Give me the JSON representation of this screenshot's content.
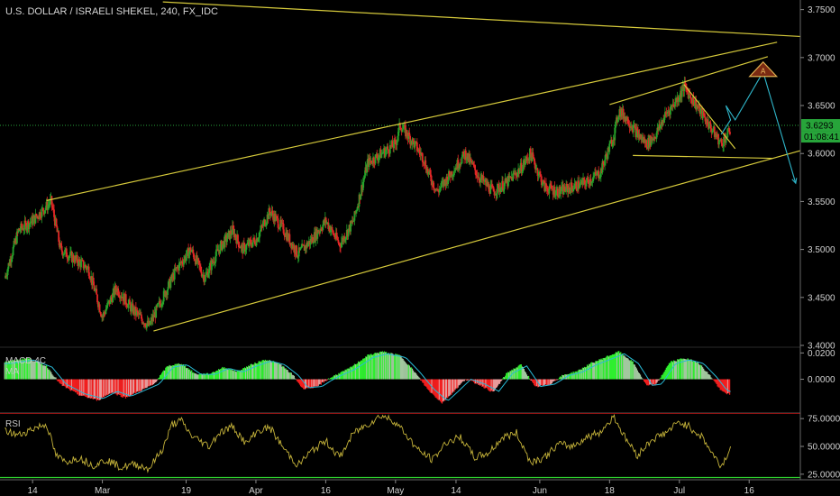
{
  "title": "U.S. DOLLAR / ISRAELI SHEKEL, 240, FX_IDC",
  "colors": {
    "background": "#000000",
    "up_candle": "#26a32a",
    "down_candle": "#e32727",
    "trendline": "#d5c93b",
    "price_line": "#27a43a",
    "macd_pos_strong": "#2fef2f",
    "macd_pos_weak": "#a3c79f",
    "macd_neg_strong": "#f21e1e",
    "macd_neg_weak": "#e89b9b",
    "macd_signal": "#28b9d6",
    "rsi_line": "#c5b33a",
    "rsi_upper": "#e81f1f",
    "rsi_lower": "#2fd02f",
    "projection": "#2fb5c9"
  },
  "chart_data": [
    {
      "type": "candlestick",
      "pane": "price",
      "title": "U.S. DOLLAR / ISRAELI SHEKEL, 240, FX_IDC",
      "ylim": [
        3.4,
        3.76
      ],
      "y_ticks": [
        "3.7500",
        "3.7000",
        "3.6500",
        "3.6000",
        "3.5500",
        "3.5000",
        "3.4500",
        "3.4000"
      ],
      "y_tick_values": [
        3.75,
        3.7,
        3.65,
        3.6,
        3.55,
        3.5,
        3.45,
        3.4
      ],
      "x_ticks": [
        "14",
        "Mar",
        "19",
        "Apr",
        "16",
        "May",
        "14",
        "Jun",
        "18",
        "Jul",
        "16"
      ],
      "x_tick_day_index": [
        0,
        15,
        33,
        48,
        63,
        78,
        91,
        109,
        124,
        139,
        154
      ],
      "x_range_day_index": [
        -7,
        165
      ],
      "last_price": "3.6293",
      "last_price_value": 3.6293,
      "countdown": "01:08:41",
      "price_path": [
        {
          "d": -6,
          "p": 3.47
        },
        {
          "d": -3,
          "p": 3.52
        },
        {
          "d": 0,
          "p": 3.53
        },
        {
          "d": 3,
          "p": 3.545
        },
        {
          "d": 4,
          "p": 3.55
        },
        {
          "d": 6,
          "p": 3.5
        },
        {
          "d": 9,
          "p": 3.49
        },
        {
          "d": 12,
          "p": 3.48
        },
        {
          "d": 15,
          "p": 3.43
        },
        {
          "d": 18,
          "p": 3.46
        },
        {
          "d": 21,
          "p": 3.44
        },
        {
          "d": 24,
          "p": 3.425
        },
        {
          "d": 25,
          "p": 3.42
        },
        {
          "d": 28,
          "p": 3.45
        },
        {
          "d": 31,
          "p": 3.48
        },
        {
          "d": 34,
          "p": 3.5
        },
        {
          "d": 37,
          "p": 3.47
        },
        {
          "d": 40,
          "p": 3.5
        },
        {
          "d": 43,
          "p": 3.52
        },
        {
          "d": 45,
          "p": 3.5
        },
        {
          "d": 48,
          "p": 3.51
        },
        {
          "d": 51,
          "p": 3.54
        },
        {
          "d": 54,
          "p": 3.52
        },
        {
          "d": 57,
          "p": 3.495
        },
        {
          "d": 60,
          "p": 3.51
        },
        {
          "d": 63,
          "p": 3.53
        },
        {
          "d": 66,
          "p": 3.505
        },
        {
          "d": 69,
          "p": 3.53
        },
        {
          "d": 72,
          "p": 3.59
        },
        {
          "d": 75,
          "p": 3.6
        },
        {
          "d": 78,
          "p": 3.61
        },
        {
          "d": 79,
          "p": 3.63
        },
        {
          "d": 82,
          "p": 3.61
        },
        {
          "d": 84,
          "p": 3.595
        },
        {
          "d": 85,
          "p": 3.58
        },
        {
          "d": 87,
          "p": 3.56
        },
        {
          "d": 90,
          "p": 3.58
        },
        {
          "d": 93,
          "p": 3.6
        },
        {
          "d": 96,
          "p": 3.575
        },
        {
          "d": 99,
          "p": 3.56
        },
        {
          "d": 102,
          "p": 3.57
        },
        {
          "d": 105,
          "p": 3.585
        },
        {
          "d": 107,
          "p": 3.6
        },
        {
          "d": 110,
          "p": 3.565
        },
        {
          "d": 113,
          "p": 3.56
        },
        {
          "d": 116,
          "p": 3.565
        },
        {
          "d": 119,
          "p": 3.57
        },
        {
          "d": 122,
          "p": 3.58
        },
        {
          "d": 125,
          "p": 3.62
        },
        {
          "d": 126,
          "p": 3.645
        },
        {
          "d": 128,
          "p": 3.635
        },
        {
          "d": 130,
          "p": 3.62
        },
        {
          "d": 132,
          "p": 3.61
        },
        {
          "d": 134,
          "p": 3.62
        },
        {
          "d": 136,
          "p": 3.64
        },
        {
          "d": 139,
          "p": 3.66
        },
        {
          "d": 140,
          "p": 3.67
        },
        {
          "d": 142,
          "p": 3.655
        },
        {
          "d": 144,
          "p": 3.64
        },
        {
          "d": 146,
          "p": 3.625
        },
        {
          "d": 148,
          "p": 3.61
        },
        {
          "d": 150,
          "p": 3.625
        }
      ],
      "trendlines": [
        {
          "name": "channel-top",
          "p1": {
            "d": 3,
            "p": 3.551
          },
          "p2": {
            "d": 160,
            "p": 3.716
          }
        },
        {
          "name": "channel-bottom",
          "p1": {
            "d": 26,
            "p": 3.415
          },
          "p2": {
            "d": 165,
            "p": 3.603
          }
        },
        {
          "name": "long-resistance",
          "p1": {
            "d": 28,
            "p": 3.758
          },
          "p2": {
            "d": 165,
            "p": 3.722
          }
        },
        {
          "name": "wedge-top",
          "p1": {
            "d": 124,
            "p": 3.651
          },
          "p2": {
            "d": 158,
            "p": 3.701
          }
        },
        {
          "name": "triangle-upper",
          "p1": {
            "d": 140,
            "p": 3.672
          },
          "p2": {
            "d": 151,
            "p": 3.605
          }
        },
        {
          "name": "triangle-lower",
          "p1": {
            "d": 129,
            "p": 3.598
          },
          "p2": {
            "d": 159,
            "p": 3.595
          }
        }
      ],
      "projection": [
        {
          "d": 148,
          "p": 3.62
        },
        {
          "d": 150,
          "p": 3.635
        },
        {
          "d": 149,
          "p": 3.65
        },
        {
          "d": 151,
          "p": 3.635
        },
        {
          "d": 157,
          "p": 3.685
        },
        {
          "d": 164,
          "p": 3.569
        }
      ],
      "marker": {
        "d": 157,
        "p": 3.686,
        "label": "A"
      }
    },
    {
      "type": "histogram",
      "pane": "macd",
      "name": "MACD 4C",
      "sublabel": "MA",
      "ylim": [
        -0.025,
        0.023
      ],
      "y_ticks": [
        "0.0200",
        "0.0000"
      ],
      "y_tick_values": [
        0.02,
        0.0
      ],
      "path": [
        {
          "d": -6,
          "v": 0.013
        },
        {
          "d": -1,
          "v": 0.016
        },
        {
          "d": 3,
          "v": 0.01
        },
        {
          "d": 6,
          "v": -0.004
        },
        {
          "d": 10,
          "v": -0.012
        },
        {
          "d": 14,
          "v": -0.016
        },
        {
          "d": 17,
          "v": -0.01
        },
        {
          "d": 20,
          "v": -0.014
        },
        {
          "d": 23,
          "v": -0.009
        },
        {
          "d": 26,
          "v": -0.004
        },
        {
          "d": 29,
          "v": 0.01
        },
        {
          "d": 32,
          "v": 0.012
        },
        {
          "d": 35,
          "v": 0.004
        },
        {
          "d": 38,
          "v": 0.004
        },
        {
          "d": 41,
          "v": 0.009
        },
        {
          "d": 44,
          "v": 0.006
        },
        {
          "d": 47,
          "v": 0.011
        },
        {
          "d": 50,
          "v": 0.015
        },
        {
          "d": 53,
          "v": 0.012
        },
        {
          "d": 56,
          "v": 0.003
        },
        {
          "d": 58,
          "v": -0.007
        },
        {
          "d": 61,
          "v": -0.006
        },
        {
          "d": 63,
          "v": -0.001
        },
        {
          "d": 65,
          "v": 0.003
        },
        {
          "d": 68,
          "v": 0.008
        },
        {
          "d": 72,
          "v": 0.018
        },
        {
          "d": 75,
          "v": 0.021
        },
        {
          "d": 79,
          "v": 0.018
        },
        {
          "d": 82,
          "v": 0.006
        },
        {
          "d": 85,
          "v": -0.008
        },
        {
          "d": 88,
          "v": -0.018
        },
        {
          "d": 90,
          "v": -0.011
        },
        {
          "d": 93,
          "v": 0.0
        },
        {
          "d": 96,
          "v": -0.004
        },
        {
          "d": 99,
          "v": -0.01
        },
        {
          "d": 102,
          "v": 0.005
        },
        {
          "d": 105,
          "v": 0.011
        },
        {
          "d": 108,
          "v": -0.006
        },
        {
          "d": 111,
          "v": -0.004
        },
        {
          "d": 114,
          "v": 0.003
        },
        {
          "d": 117,
          "v": 0.006
        },
        {
          "d": 120,
          "v": 0.012
        },
        {
          "d": 124,
          "v": 0.018
        },
        {
          "d": 126,
          "v": 0.021
        },
        {
          "d": 129,
          "v": 0.013
        },
        {
          "d": 132,
          "v": -0.005
        },
        {
          "d": 134,
          "v": -0.004
        },
        {
          "d": 137,
          "v": 0.013
        },
        {
          "d": 140,
          "v": 0.016
        },
        {
          "d": 143,
          "v": 0.013
        },
        {
          "d": 146,
          "v": 0.001
        },
        {
          "d": 148,
          "v": -0.009
        },
        {
          "d": 150,
          "v": -0.012
        }
      ]
    },
    {
      "type": "line",
      "pane": "rsi",
      "name": "RSI",
      "ylim": [
        20,
        80
      ],
      "y_ticks": [
        "75.0000",
        "50.0000",
        "25.0000"
      ],
      "y_tick_values": [
        75,
        50,
        25
      ],
      "levels": [
        80,
        22
      ],
      "path": [
        {
          "d": -6,
          "v": 64
        },
        {
          "d": -3,
          "v": 60
        },
        {
          "d": 0,
          "v": 66
        },
        {
          "d": 3,
          "v": 70
        },
        {
          "d": 5,
          "v": 42
        },
        {
          "d": 7,
          "v": 36
        },
        {
          "d": 10,
          "v": 40
        },
        {
          "d": 13,
          "v": 33
        },
        {
          "d": 16,
          "v": 38
        },
        {
          "d": 19,
          "v": 31
        },
        {
          "d": 22,
          "v": 34
        },
        {
          "d": 25,
          "v": 30
        },
        {
          "d": 28,
          "v": 48
        },
        {
          "d": 30,
          "v": 70
        },
        {
          "d": 32,
          "v": 73
        },
        {
          "d": 34,
          "v": 60
        },
        {
          "d": 36,
          "v": 55
        },
        {
          "d": 38,
          "v": 50
        },
        {
          "d": 40,
          "v": 62
        },
        {
          "d": 43,
          "v": 68
        },
        {
          "d": 46,
          "v": 52
        },
        {
          "d": 48,
          "v": 63
        },
        {
          "d": 51,
          "v": 67
        },
        {
          "d": 54,
          "v": 48
        },
        {
          "d": 57,
          "v": 33
        },
        {
          "d": 60,
          "v": 46
        },
        {
          "d": 63,
          "v": 55
        },
        {
          "d": 66,
          "v": 40
        },
        {
          "d": 69,
          "v": 62
        },
        {
          "d": 72,
          "v": 70
        },
        {
          "d": 75,
          "v": 78
        },
        {
          "d": 78,
          "v": 72
        },
        {
          "d": 80,
          "v": 62
        },
        {
          "d": 83,
          "v": 46
        },
        {
          "d": 86,
          "v": 38
        },
        {
          "d": 89,
          "v": 54
        },
        {
          "d": 92,
          "v": 58
        },
        {
          "d": 95,
          "v": 40
        },
        {
          "d": 98,
          "v": 44
        },
        {
          "d": 101,
          "v": 58
        },
        {
          "d": 104,
          "v": 62
        },
        {
          "d": 107,
          "v": 36
        },
        {
          "d": 110,
          "v": 40
        },
        {
          "d": 113,
          "v": 52
        },
        {
          "d": 116,
          "v": 50
        },
        {
          "d": 119,
          "v": 58
        },
        {
          "d": 122,
          "v": 63
        },
        {
          "d": 125,
          "v": 77
        },
        {
          "d": 127,
          "v": 60
        },
        {
          "d": 130,
          "v": 42
        },
        {
          "d": 133,
          "v": 56
        },
        {
          "d": 136,
          "v": 62
        },
        {
          "d": 139,
          "v": 72
        },
        {
          "d": 141,
          "v": 68
        },
        {
          "d": 144,
          "v": 58
        },
        {
          "d": 146,
          "v": 44
        },
        {
          "d": 148,
          "v": 32
        },
        {
          "d": 150,
          "v": 48
        }
      ]
    }
  ]
}
